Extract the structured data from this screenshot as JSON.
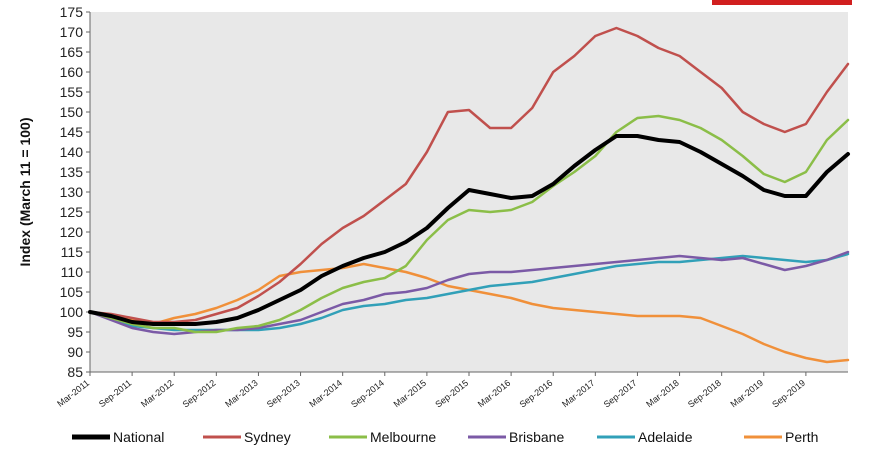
{
  "chart_data": {
    "type": "line",
    "ylabel": "Index (March 11 = 100)",
    "ylim": [
      85,
      175
    ],
    "yticks": [
      85,
      90,
      95,
      100,
      105,
      110,
      115,
      120,
      125,
      130,
      135,
      140,
      145,
      150,
      155,
      160,
      165,
      170,
      175
    ],
    "grid": "none",
    "legend_placement": "bottom",
    "x_tick_labels": [
      "Mar-2011",
      "Sep-2011",
      "Mar-2012",
      "Sep-2012",
      "Mar-2013",
      "Sep-2013",
      "Mar-2014",
      "Sep-2014",
      "Mar-2015",
      "Sep-2015",
      "Mar-2016",
      "Sep-2016",
      "Mar-2017",
      "Sep-2017",
      "Mar-2018",
      "Sep-2018",
      "Mar-2019",
      "Sep-2019"
    ],
    "x": [
      "Mar-2011",
      "Jun-2011",
      "Sep-2011",
      "Dec-2011",
      "Mar-2012",
      "Jun-2012",
      "Sep-2012",
      "Dec-2012",
      "Mar-2013",
      "Jun-2013",
      "Sep-2013",
      "Dec-2013",
      "Mar-2014",
      "Jun-2014",
      "Sep-2014",
      "Dec-2014",
      "Mar-2015",
      "Jun-2015",
      "Sep-2015",
      "Dec-2015",
      "Mar-2016",
      "Jun-2016",
      "Sep-2016",
      "Dec-2016",
      "Mar-2017",
      "Jun-2017",
      "Sep-2017",
      "Dec-2017",
      "Mar-2018",
      "Jun-2018",
      "Sep-2018",
      "Dec-2018",
      "Mar-2019",
      "Jun-2019",
      "Sep-2019",
      "Dec-2019",
      "Feb-2020"
    ],
    "series": [
      {
        "name": "National",
        "color": "#000000",
        "width": 4,
        "values": [
          100,
          99,
          97.5,
          97,
          97,
          97,
          97.5,
          98.5,
          100.5,
          103,
          105.5,
          109,
          111.5,
          113.5,
          115,
          117.5,
          121,
          126,
          130.5,
          129.5,
          128.5,
          129,
          132,
          136.5,
          140.5,
          144,
          144,
          143,
          142.5,
          140,
          137,
          134,
          130.5,
          129,
          129,
          135,
          139.5
        ]
      },
      {
        "name": "Sydney",
        "color": "#c0504d",
        "width": 2.5,
        "values": [
          100,
          99.5,
          98.5,
          97.5,
          97.5,
          98,
          99.5,
          101,
          104,
          107.5,
          112,
          117,
          121,
          124,
          128,
          132,
          140,
          150,
          150.5,
          146,
          146,
          151,
          160,
          164,
          169,
          171,
          169,
          166,
          164,
          160,
          156,
          150,
          147,
          145,
          147,
          155,
          162
        ]
      },
      {
        "name": "Melbourne",
        "color": "#8bbe48",
        "width": 2.5,
        "values": [
          100,
          98.5,
          97,
          96,
          96,
          95,
          95,
          96,
          96.5,
          98,
          100.5,
          103.5,
          106,
          107.5,
          108.5,
          111.5,
          118,
          123,
          125.5,
          125,
          125.5,
          127.5,
          131.5,
          135,
          139,
          145,
          148.5,
          149,
          148,
          146,
          143,
          139,
          134.5,
          132.5,
          135,
          143,
          148
        ]
      },
      {
        "name": "Brisbane",
        "color": "#7b5aa6",
        "width": 2.5,
        "values": [
          100,
          98,
          96,
          95,
          94.5,
          95,
          95.5,
          95.5,
          96,
          97,
          98,
          100,
          102,
          103,
          104.5,
          105,
          106,
          108,
          109.5,
          110,
          110,
          110.5,
          111,
          111.5,
          112,
          112.5,
          113,
          113.5,
          114,
          113.5,
          113,
          113.5,
          112,
          110.5,
          111.5,
          113,
          115
        ]
      },
      {
        "name": "Adelaide",
        "color": "#31a0b8",
        "width": 2.5,
        "values": [
          100,
          98.5,
          96.5,
          96,
          95.5,
          95.5,
          95.5,
          95.5,
          95.5,
          96,
          97,
          98.5,
          100.5,
          101.5,
          102,
          103,
          103.5,
          104.5,
          105.5,
          106.5,
          107,
          107.5,
          108.5,
          109.5,
          110.5,
          111.5,
          112,
          112.5,
          112.5,
          113,
          113.5,
          114,
          113.5,
          113,
          112.5,
          113,
          114.5
        ]
      },
      {
        "name": "Perth",
        "color": "#f0903a",
        "width": 2.5,
        "values": [
          100,
          99,
          98,
          97,
          98.5,
          99.5,
          101,
          103,
          105.5,
          109,
          110,
          110.5,
          111,
          112,
          111,
          110,
          108.5,
          106.5,
          105.5,
          104.5,
          103.5,
          102,
          101,
          100.5,
          100,
          99.5,
          99,
          99,
          99,
          98.5,
          96.5,
          94.5,
          92,
          90,
          88.5,
          87.5,
          88
        ]
      }
    ]
  }
}
